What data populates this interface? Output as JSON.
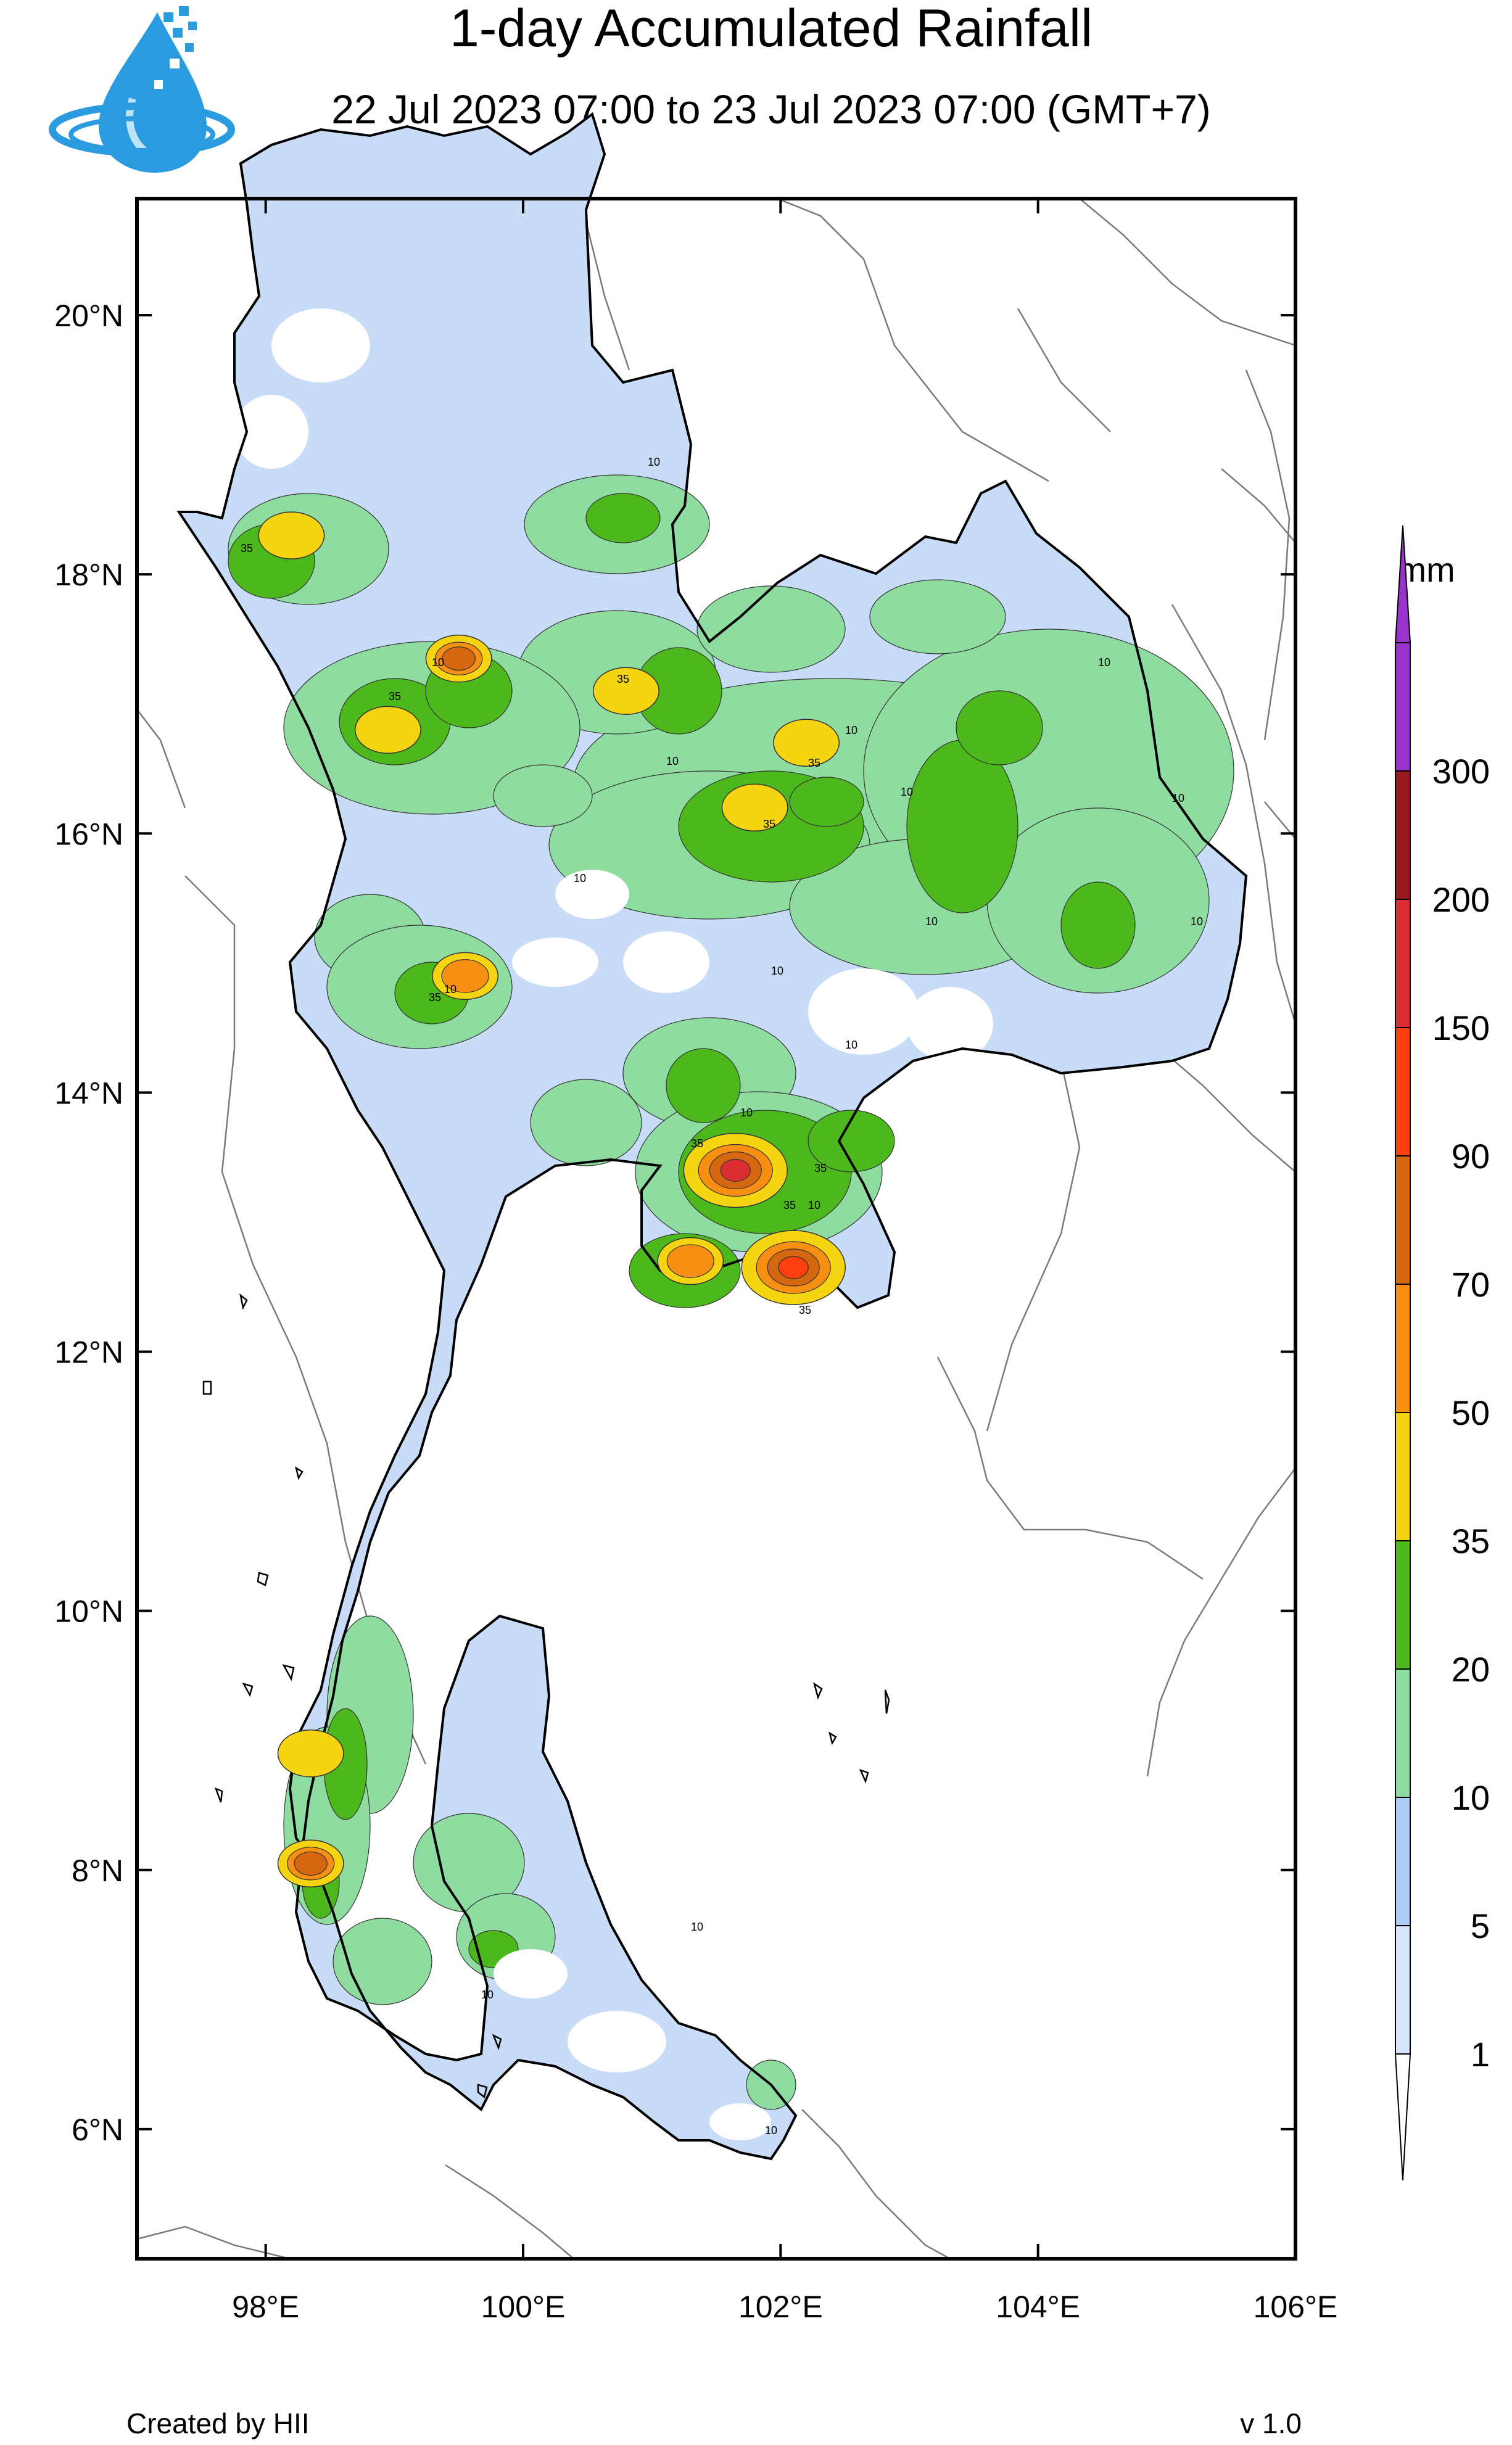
{
  "header": {
    "title": "1-day Accumulated Rainfall",
    "subtitle": "22 Jul 2023 07:00 to 23 Jul 2023 07:00 (GMT+7)",
    "logo_icon": "water-drop-logo-icon"
  },
  "map": {
    "lon_range": [
      97,
      106
    ],
    "lat_range": [
      5,
      20.9
    ],
    "lon_ticks": [
      {
        "value": 98,
        "label": "98°E"
      },
      {
        "value": 100,
        "label": "100°E"
      },
      {
        "value": 102,
        "label": "102°E"
      },
      {
        "value": 104,
        "label": "104°E"
      },
      {
        "value": 106,
        "label": "106°E"
      }
    ],
    "lat_ticks": [
      {
        "value": 20,
        "label": "20°N"
      },
      {
        "value": 18,
        "label": "18°N"
      },
      {
        "value": 16,
        "label": "16°N"
      },
      {
        "value": 14,
        "label": "14°N"
      },
      {
        "value": 12,
        "label": "12°N"
      },
      {
        "value": 10,
        "label": "10°N"
      },
      {
        "value": 8,
        "label": "8°N"
      },
      {
        "value": 6,
        "label": "6°N"
      }
    ],
    "contour_labels": [
      "10",
      "35"
    ],
    "rain_cells": [
      {
        "lon": 98.2,
        "lat": 18.3,
        "level": 35
      },
      {
        "lon": 99.5,
        "lat": 17.35,
        "level": 70
      },
      {
        "lon": 98.95,
        "lat": 16.8,
        "level": 35
      },
      {
        "lon": 100.8,
        "lat": 17.1,
        "level": 35
      },
      {
        "lon": 102.2,
        "lat": 16.7,
        "level": 35
      },
      {
        "lon": 101.8,
        "lat": 16.2,
        "level": 35
      },
      {
        "lon": 99.55,
        "lat": 14.9,
        "level": 50
      },
      {
        "lon": 101.65,
        "lat": 13.4,
        "level": 150
      },
      {
        "lon": 102.1,
        "lat": 12.65,
        "level": 90
      },
      {
        "lon": 101.3,
        "lat": 12.7,
        "level": 50
      },
      {
        "lon": 98.35,
        "lat": 8.9,
        "level": 35
      },
      {
        "lon": 98.35,
        "lat": 8.05,
        "level": 70
      }
    ]
  },
  "colorbar": {
    "unit": "mm",
    "levels": [
      "1",
      "5",
      "10",
      "20",
      "35",
      "50",
      "70",
      "90",
      "150",
      "200",
      "300"
    ],
    "colors": [
      "#d6e5fb",
      "#afcdf5",
      "#8edca0",
      "#4db81b",
      "#f5d512",
      "#f78f12",
      "#d56710",
      "#ff3f10",
      "#dc2d32",
      "#991b1f",
      "#9933cc"
    ]
  },
  "footer": {
    "credit": "Created by HII",
    "version": "v 1.0"
  }
}
